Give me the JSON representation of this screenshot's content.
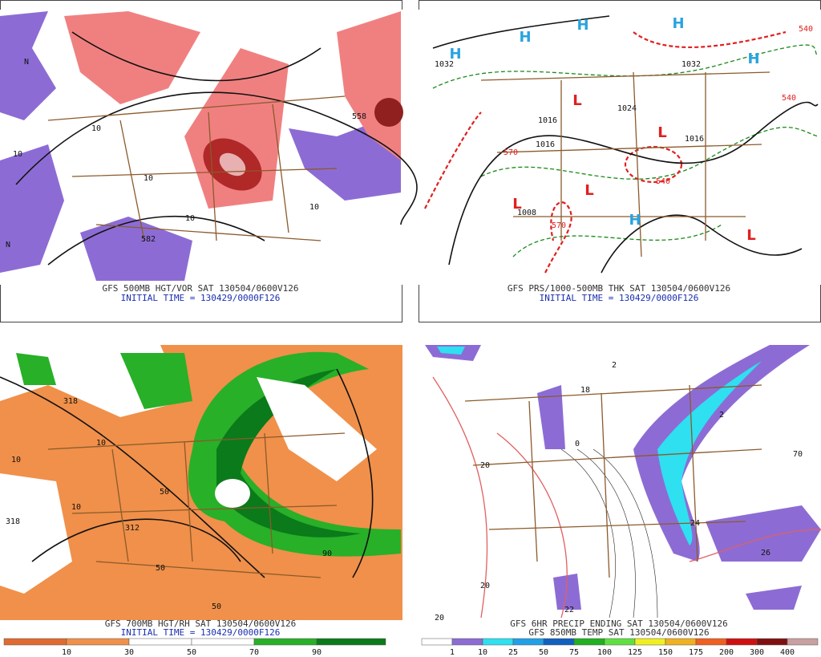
{
  "panels": [
    {
      "caption": [
        "GFS 500MB HGT/VOR SAT 130504/0600V126",
        "INITIAL TIME = 130429/0000F126"
      ],
      "labels": [
        "10",
        "10",
        "10",
        "10",
        "582",
        "558",
        "N",
        "N",
        "10"
      ]
    },
    {
      "caption": [
        "GFS PRS/1000-500MB THK SAT 130504/0600V126",
        "INITIAL TIME = 130429/0000F126"
      ],
      "highs": [
        "H",
        "H",
        "H",
        "H",
        "H",
        "H"
      ],
      "lows": [
        "L",
        "L",
        "L",
        "L",
        "L"
      ],
      "labels": [
        "1032",
        "1032",
        "1016",
        "1016",
        "1016",
        "1024",
        "1008"
      ],
      "thickness": [
        "570",
        "570",
        "540",
        "540",
        "540"
      ]
    },
    {
      "caption": [
        "GFS 700MB HGT/RH SAT 130504/0600V126",
        "INITIAL TIME = 130429/0000F126"
      ],
      "labels": [
        "318",
        "318",
        "312",
        "10",
        "10",
        "10",
        "50",
        "50",
        "50",
        "90"
      ],
      "colorbar": [
        "10",
        "30",
        "50",
        "70",
        "90"
      ]
    },
    {
      "caption": [
        "GFS 6HR PRECIP ENDING SAT 130504/0600V126",
        "GFS 850MB TEMP SAT 130504/0600V126"
      ],
      "labels": [
        "2",
        "18",
        "2",
        "20",
        "20",
        "20",
        "26",
        "24",
        "22",
        "70",
        "0"
      ],
      "colorbar": [
        "1",
        "10",
        "25",
        "50",
        "75",
        "100",
        "125",
        "150",
        "175",
        "200",
        "300",
        "400"
      ]
    }
  ]
}
